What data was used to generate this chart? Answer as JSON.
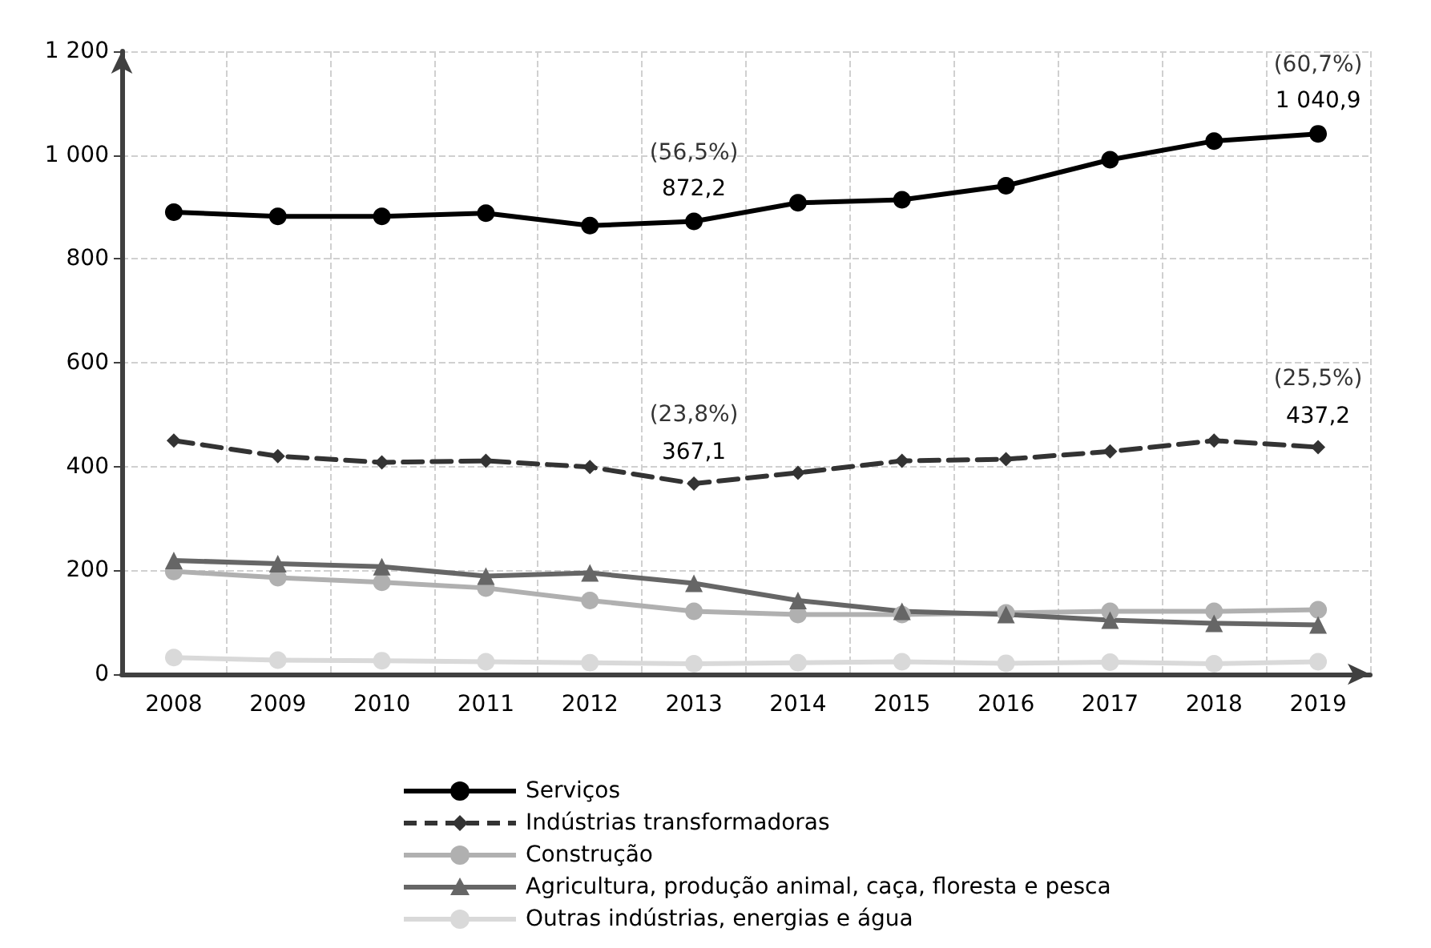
{
  "chart_data": {
    "type": "line",
    "categories": [
      "2008",
      "2009",
      "2010",
      "2011",
      "2012",
      "2013",
      "2014",
      "2015",
      "2016",
      "2017",
      "2018",
      "2019"
    ],
    "ylim": [
      0,
      1200
    ],
    "yticks": [
      0,
      200,
      400,
      600,
      800,
      {
        "value": 1000,
        "label": "1 000"
      },
      {
        "value": 1200,
        "label": "1 200"
      }
    ],
    "grid": true,
    "legend": "bottom",
    "series": [
      {
        "name": "Serviços",
        "color": "#000000",
        "marker": "circle",
        "line_style": "solid",
        "values": [
          890,
          882,
          882,
          888,
          864,
          872.2,
          908,
          914,
          941,
          991,
          1027,
          1040.9
        ],
        "value_labels": [
          null,
          null,
          null,
          null,
          null,
          "872,2",
          null,
          null,
          null,
          null,
          null,
          "1 040,9"
        ]
      },
      {
        "name": "Indústrias transformadoras",
        "color": "#333333",
        "marker": "diamond",
        "line_style": "dashed",
        "values": [
          450,
          420,
          408,
          411,
          399,
          367.1,
          388,
          411,
          414,
          429,
          450,
          437.2
        ],
        "value_labels": [
          null,
          null,
          null,
          null,
          null,
          "367,1",
          null,
          null,
          null,
          null,
          null,
          "437,2"
        ]
      },
      {
        "name": "Construção",
        "color": "#b0b0b0",
        "marker": "circle",
        "line_style": "solid",
        "values": [
          198,
          186,
          177,
          166,
          142,
          121,
          115,
          115,
          118,
          121,
          121,
          124
        ]
      },
      {
        "name": "Agricultura, produção animal, caça, floresta e pesca",
        "color": "#666666",
        "marker": "triangle",
        "line_style": "solid",
        "values": [
          219,
          213,
          207,
          189,
          195,
          175,
          142,
          121,
          115,
          104,
          98,
          95
        ]
      },
      {
        "name": "Outras indústrias, energias e água",
        "color": "#d9d9d9",
        "marker": "circle",
        "line_style": "solid",
        "values": [
          32,
          27,
          26,
          24,
          22,
          20,
          22,
          24,
          21,
          23,
          20,
          24
        ]
      }
    ],
    "annotations": [
      {
        "text": "(56,5%)",
        "x": "2013",
        "y": 872.2
      },
      {
        "text": "(60,7%)",
        "x": "2019",
        "y": 1040.9
      },
      {
        "text": "(23,8%)",
        "x": "2013",
        "y": 367.1
      },
      {
        "text": "(25,5%)",
        "x": "2019",
        "y": 437.2
      }
    ]
  }
}
